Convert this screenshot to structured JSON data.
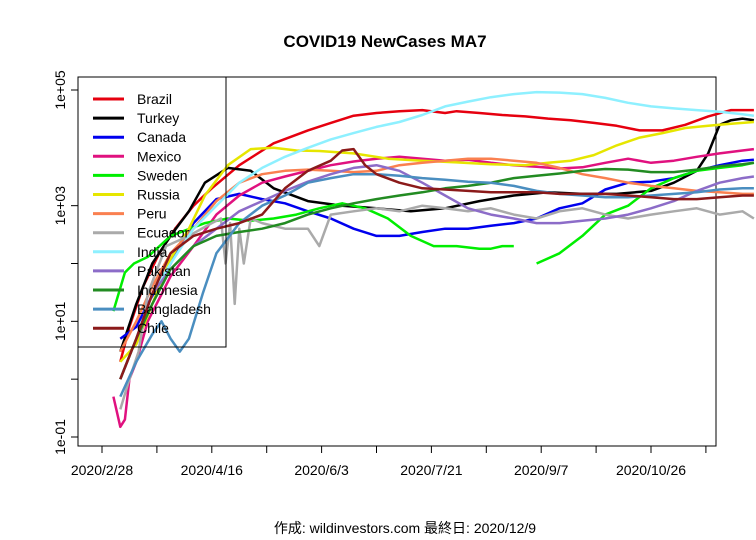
{
  "chart_data": {
    "type": "line",
    "title": "COVID19 NewCases MA7",
    "footer": "作成: wildinvestors.com 最終日: 2020/12/9",
    "y_scale": "log10",
    "ylim": [
      0.1,
      100000
    ],
    "y_ticks": [
      {
        "value": 0.1,
        "label": "1e-01"
      },
      {
        "value": 10,
        "label": "1e+01"
      },
      {
        "value": 1000,
        "label": "1e+03"
      },
      {
        "value": 100000,
        "label": "1e+05"
      }
    ],
    "x_unit": "days since 2020-02-28",
    "xlim": [
      -3,
      289
    ],
    "x_ticks": [
      {
        "value": 0,
        "label": "2020/2/28"
      },
      {
        "value": 48,
        "label": "2020/4/16"
      },
      {
        "value": 96,
        "label": "2020/6/3"
      },
      {
        "value": 144,
        "label": "2020/7/21"
      },
      {
        "value": 192,
        "label": "2020/9/7"
      },
      {
        "value": 240,
        "label": "2020/10/26"
      }
    ],
    "x_minor_ticks": [
      24,
      72,
      120,
      168,
      216,
      264
    ],
    "series": [
      {
        "name": "Brazil",
        "color": "#e6000f",
        "x": [
          8,
          12,
          18,
          25,
          32,
          40,
          48,
          60,
          75,
          90,
          100,
          110,
          120,
          130,
          140,
          150,
          155,
          165,
          175,
          185,
          195,
          205,
          215,
          225,
          235,
          245,
          255,
          265,
          275,
          285
        ],
        "y": [
          2,
          8,
          40,
          150,
          400,
          1000,
          2000,
          5000,
          12000,
          20000,
          27000,
          36000,
          40000,
          43000,
          45000,
          40000,
          43000,
          40000,
          37000,
          35000,
          32000,
          30000,
          27000,
          24000,
          20000,
          20000,
          25000,
          35000,
          45000,
          45000
        ]
      },
      {
        "name": "Turkey",
        "color": "#000000",
        "x": [
          8,
          15,
          22,
          30,
          38,
          45,
          55,
          65,
          75,
          90,
          105,
          120,
          135,
          150,
          165,
          180,
          195,
          210,
          225,
          240,
          250,
          260,
          265,
          270,
          275,
          280,
          285
        ],
        "y": [
          3,
          20,
          100,
          300,
          800,
          2500,
          4500,
          4000,
          2000,
          1200,
          1000,
          900,
          800,
          900,
          1200,
          1500,
          1700,
          1600,
          1600,
          1800,
          2500,
          4000,
          8000,
          25000,
          30000,
          32000,
          30000
        ]
      },
      {
        "name": "Canada",
        "color": "#0000ee",
        "x": [
          8,
          15,
          20,
          30,
          40,
          50,
          60,
          70,
          80,
          90,
          100,
          110,
          120,
          130,
          140,
          150,
          160,
          170,
          180,
          190,
          200,
          210,
          220,
          230,
          240,
          250,
          260,
          270,
          280,
          285
        ],
        "y": [
          5,
          8,
          20,
          100,
          500,
          1300,
          1600,
          1300,
          1100,
          800,
          600,
          400,
          300,
          300,
          350,
          400,
          400,
          450,
          500,
          600,
          900,
          1100,
          1900,
          2500,
          2600,
          3000,
          4000,
          5000,
          6000,
          6200
        ]
      },
      {
        "name": "Mexico",
        "color": "#e0117f",
        "x": [
          5,
          8,
          10,
          12,
          15,
          20,
          30,
          40,
          50,
          60,
          70,
          80,
          90,
          100,
          110,
          120,
          130,
          140,
          150,
          160,
          170,
          180,
          190,
          200,
          210,
          220,
          230,
          240,
          250,
          260,
          270,
          280,
          285
        ],
        "y": [
          0.5,
          0.15,
          0.2,
          1,
          2,
          10,
          60,
          200,
          700,
          1500,
          2500,
          3200,
          4000,
          5000,
          5800,
          6500,
          7000,
          6500,
          6000,
          6200,
          5500,
          5000,
          4700,
          4400,
          4600,
          5500,
          6500,
          5500,
          6000,
          7000,
          8000,
          9000,
          9500
        ]
      },
      {
        "name": "Sweden",
        "color": "#00ee00",
        "x": [
          5,
          10,
          14,
          20,
          30,
          45,
          55,
          65,
          75,
          85,
          95,
          105,
          115,
          125,
          135,
          145,
          155,
          165,
          170,
          175,
          180
        ],
        "y": [
          15,
          70,
          100,
          130,
          300,
          500,
          600,
          550,
          600,
          700,
          900,
          1100,
          900,
          600,
          300,
          200,
          200,
          180,
          180,
          200,
          200
        ],
        "x2": [
          190,
          200,
          210,
          220,
          230,
          240,
          250,
          260,
          270,
          280,
          285
        ],
        "y2": [
          100,
          150,
          300,
          700,
          1000,
          2000,
          3000,
          4000,
          4500,
          5000,
          5500
        ]
      },
      {
        "name": "Russia",
        "color": "#e6e600",
        "x": [
          8,
          15,
          22,
          30,
          38,
          45,
          55,
          65,
          75,
          85,
          95,
          110,
          125,
          140,
          155,
          170,
          185,
          195,
          205,
          215,
          225,
          235,
          245,
          255,
          265,
          275,
          285
        ],
        "y": [
          2,
          4,
          20,
          120,
          400,
          1500,
          5000,
          9500,
          10000,
          9000,
          8800,
          8000,
          6500,
          6000,
          5600,
          5200,
          5000,
          5500,
          6000,
          7500,
          11000,
          15000,
          18000,
          22000,
          24000,
          26000,
          28000
        ]
      },
      {
        "name": "Peru",
        "color": "#fa8050",
        "x": [
          8,
          15,
          22,
          30,
          40,
          50,
          60,
          70,
          80,
          90,
          100,
          110,
          120,
          130,
          140,
          150,
          160,
          170,
          180,
          190,
          200,
          210,
          220,
          230,
          240,
          250,
          260,
          270,
          280,
          285
        ],
        "y": [
          3,
          10,
          40,
          150,
          400,
          1200,
          2500,
          3500,
          4000,
          4200,
          4000,
          3800,
          4000,
          5000,
          5500,
          6000,
          6500,
          6500,
          6000,
          5500,
          4500,
          3500,
          3000,
          2500,
          2200,
          2000,
          1800,
          1700,
          1600,
          1600
        ]
      },
      {
        "name": "Ecuador",
        "color": "#aaaaaa",
        "x": [
          8,
          12,
          16,
          20,
          28,
          38,
          48,
          52,
          54,
          56,
          58,
          60,
          62,
          65,
          70,
          80,
          90,
          95,
          100,
          110,
          120,
          130,
          140,
          150,
          160,
          170,
          180,
          190,
          200,
          210,
          220,
          230,
          240,
          250,
          260,
          270,
          280,
          285
        ],
        "y": [
          0.3,
          1,
          3,
          30,
          200,
          300,
          500,
          600,
          100,
          500,
          20,
          400,
          100,
          600,
          500,
          400,
          400,
          200,
          700,
          800,
          900,
          800,
          1000,
          900,
          800,
          900,
          700,
          600,
          800,
          900,
          700,
          600,
          700,
          800,
          900,
          700,
          800,
          600
        ]
      },
      {
        "name": "India",
        "color": "#8ef0ff",
        "x": [
          8,
          15,
          22,
          30,
          40,
          50,
          60,
          70,
          80,
          90,
          100,
          110,
          120,
          130,
          140,
          150,
          160,
          170,
          180,
          190,
          200,
          210,
          220,
          230,
          240,
          250,
          260,
          270,
          280,
          285
        ],
        "y": [
          1,
          5,
          30,
          100,
          400,
          1000,
          2500,
          4500,
          7000,
          10000,
          14000,
          18000,
          23000,
          28000,
          37000,
          52000,
          63000,
          75000,
          85000,
          92000,
          90000,
          85000,
          73000,
          60000,
          52000,
          48000,
          45000,
          42000,
          38000,
          36000
        ]
      },
      {
        "name": "Pakistan",
        "color": "#8c6cc8",
        "x": [
          8,
          15,
          22,
          30,
          40,
          50,
          60,
          70,
          80,
          90,
          100,
          110,
          120,
          130,
          140,
          150,
          160,
          170,
          180,
          190,
          200,
          210,
          220,
          230,
          240,
          250,
          260,
          270,
          280,
          285
        ],
        "y": [
          1,
          5,
          30,
          80,
          200,
          400,
          800,
          1200,
          1800,
          2600,
          3500,
          4500,
          5000,
          4000,
          2500,
          1500,
          900,
          700,
          600,
          500,
          500,
          550,
          600,
          700,
          900,
          1200,
          1800,
          2500,
          3000,
          3200
        ]
      },
      {
        "name": "Indonesia",
        "color": "#228b22",
        "x": [
          8,
          15,
          22,
          30,
          40,
          50,
          60,
          70,
          80,
          90,
          100,
          110,
          120,
          130,
          140,
          150,
          160,
          170,
          180,
          190,
          200,
          210,
          220,
          230,
          240,
          250,
          260,
          270,
          280,
          285
        ],
        "y": [
          1,
          5,
          20,
          80,
          200,
          300,
          350,
          400,
          500,
          700,
          900,
          1100,
          1300,
          1500,
          1700,
          2000,
          2200,
          2500,
          3000,
          3300,
          3600,
          4000,
          4300,
          4200,
          3800,
          3800,
          4200,
          4800,
          5200,
          5500
        ]
      },
      {
        "name": "Bangladesh",
        "color": "#4a8ec0",
        "x": [
          8,
          15,
          22,
          26,
          30,
          34,
          38,
          44,
          50,
          60,
          70,
          80,
          90,
          100,
          110,
          120,
          130,
          140,
          150,
          160,
          170,
          180,
          190,
          200,
          210,
          220,
          230,
          240,
          250,
          260,
          270,
          280,
          285
        ],
        "y": [
          0.5,
          2,
          6,
          10,
          5,
          3,
          5,
          30,
          150,
          500,
          1000,
          1500,
          2500,
          3000,
          3500,
          3500,
          3300,
          3000,
          2800,
          2600,
          2500,
          2200,
          1800,
          1600,
          1500,
          1400,
          1400,
          1500,
          1600,
          1700,
          1900,
          2000,
          2000
        ]
      },
      {
        "name": "Chile",
        "color": "#8b1a1a",
        "x": [
          8,
          15,
          22,
          30,
          40,
          50,
          60,
          70,
          80,
          90,
          100,
          105,
          110,
          115,
          120,
          130,
          140,
          150,
          160,
          170,
          180,
          190,
          200,
          210,
          220,
          230,
          240,
          250,
          260,
          270,
          280,
          285
        ],
        "y": [
          1,
          5,
          30,
          150,
          300,
          400,
          500,
          700,
          2000,
          4000,
          6000,
          9000,
          9500,
          5000,
          3500,
          2500,
          2000,
          1900,
          1800,
          1700,
          1700,
          1700,
          1600,
          1600,
          1600,
          1500,
          1400,
          1300,
          1300,
          1400,
          1500,
          1500
        ]
      }
    ]
  }
}
